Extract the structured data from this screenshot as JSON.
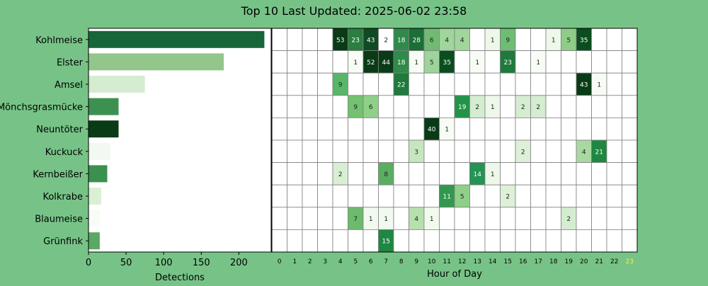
{
  "chart_data": [
    {
      "type": "bar",
      "orientation": "horizontal",
      "title": "Top 10 Last Updated: 2025-06-02 23:58",
      "xlabel": "Detections",
      "categories": [
        "Kohlmeise",
        "Elster",
        "Amsel",
        "Mönchsgrasmücke",
        "Neuntöter",
        "Kuckuck",
        "Kernbeißer",
        "Kolkrabe",
        "Blaumeise",
        "Grünfink"
      ],
      "values": [
        234,
        180,
        75,
        40,
        40,
        29,
        25,
        17,
        15,
        15
      ],
      "colors": [
        "#17663a",
        "#93c68b",
        "#d5ecd1",
        "#3d9150",
        "#0a3b17",
        "#f2f9f0",
        "#3b904f",
        "#daf0d5",
        "#f7fcf5",
        "#5aa865"
      ],
      "xticks": [
        0,
        50,
        100,
        150,
        200
      ],
      "xlim": [
        0,
        243
      ]
    },
    {
      "type": "heatmap",
      "xlabel": "Hour of Day",
      "x": [
        "0",
        "1",
        "2",
        "3",
        "4",
        "5",
        "6",
        "7",
        "8",
        "9",
        "10",
        "11",
        "12",
        "13",
        "14",
        "15",
        "16",
        "17",
        "18",
        "19",
        "20",
        "21",
        "22",
        "23"
      ],
      "highlight_hour": "23",
      "highlight_color": "#eaf24a",
      "rows": [
        "Kohlmeise",
        "Elster",
        "Amsel",
        "Mönchsgrasmücke",
        "Neuntöter",
        "Kuckuck",
        "Kernbeißer",
        "Kolkrabe",
        "Blaumeise",
        "Grünfink"
      ],
      "values": [
        [
          0,
          0,
          0,
          0,
          53,
          23,
          43,
          2,
          18,
          28,
          6,
          4,
          4,
          0,
          1,
          9,
          0,
          0,
          1,
          5,
          35,
          0,
          0,
          0
        ],
        [
          0,
          0,
          0,
          0,
          0,
          1,
          52,
          44,
          18,
          1,
          5,
          35,
          0,
          1,
          0,
          23,
          0,
          1,
          0,
          0,
          0,
          0,
          0,
          0
        ],
        [
          0,
          0,
          0,
          0,
          9,
          0,
          0,
          0,
          22,
          0,
          0,
          0,
          0,
          0,
          0,
          0,
          0,
          0,
          0,
          0,
          43,
          1,
          0,
          0
        ],
        [
          0,
          0,
          0,
          0,
          0,
          9,
          6,
          0,
          0,
          0,
          0,
          0,
          19,
          2,
          1,
          0,
          2,
          2,
          0,
          0,
          0,
          0,
          0,
          0
        ],
        [
          0,
          0,
          0,
          0,
          0,
          0,
          0,
          0,
          0,
          0,
          40,
          1,
          0,
          0,
          0,
          0,
          0,
          0,
          0,
          0,
          0,
          0,
          0,
          0
        ],
        [
          0,
          0,
          0,
          0,
          0,
          0,
          0,
          0,
          0,
          3,
          0,
          0,
          0,
          0,
          0,
          0,
          2,
          0,
          0,
          0,
          4,
          21,
          0,
          0
        ],
        [
          0,
          0,
          0,
          0,
          2,
          0,
          0,
          8,
          0,
          0,
          0,
          0,
          0,
          14,
          1,
          0,
          0,
          0,
          0,
          0,
          0,
          0,
          0,
          0
        ],
        [
          0,
          0,
          0,
          0,
          0,
          0,
          0,
          0,
          0,
          0,
          0,
          11,
          5,
          0,
          0,
          2,
          0,
          0,
          0,
          0,
          0,
          0,
          0,
          0
        ],
        [
          0,
          0,
          0,
          0,
          0,
          7,
          1,
          1,
          0,
          4,
          1,
          0,
          0,
          0,
          0,
          0,
          0,
          0,
          0,
          2,
          0,
          0,
          0,
          0
        ],
        [
          0,
          0,
          0,
          0,
          0,
          0,
          0,
          15,
          0,
          0,
          0,
          0,
          0,
          0,
          0,
          0,
          0,
          0,
          0,
          0,
          0,
          0,
          0,
          0
        ]
      ],
      "cell_colors": [
        [
          null,
          null,
          null,
          null,
          "#0a3b17",
          "#2a7e3f",
          "#0f4a22",
          null,
          "#2e8b4a",
          "#1a6e36",
          "#72ba74",
          "#a0d69b",
          "#a0d69b",
          null,
          "#eef8ea",
          "#6cbe72",
          null,
          null,
          "#eef8ea",
          "#8fcc88",
          "#0a4d1f",
          null,
          null,
          null
        ],
        [
          null,
          null,
          null,
          null,
          null,
          "#f7fcf5",
          "#0a3b17",
          "#0a3b17",
          "#2e8b4a",
          "#f7fcf5",
          "#9ed49b",
          "#0a4d1f",
          null,
          "#f7fcf5",
          null,
          "#1f7a3b",
          null,
          "#f7fcf5",
          null,
          null,
          null,
          null,
          null,
          null
        ],
        [
          null,
          null,
          null,
          null,
          "#58b668",
          null,
          null,
          null,
          "#1f7a3b",
          null,
          null,
          null,
          null,
          null,
          null,
          null,
          null,
          null,
          null,
          null,
          "#0a3b17",
          "#f7fcf5",
          null,
          null
        ],
        [
          null,
          null,
          null,
          null,
          null,
          "#72c270",
          "#8ed087",
          null,
          null,
          null,
          null,
          null,
          "#229449",
          "#d4ecd0",
          "#eef8ea",
          null,
          "#d4ecd0",
          "#d4ecd0",
          null,
          null,
          null,
          null,
          null,
          null
        ],
        [
          null,
          null,
          null,
          null,
          null,
          null,
          null,
          null,
          null,
          null,
          "#0a3b17",
          "#f7fcf5",
          null,
          null,
          null,
          null,
          null,
          null,
          null,
          null,
          null,
          null,
          null,
          null
        ],
        [
          null,
          null,
          null,
          null,
          null,
          null,
          null,
          null,
          null,
          "#c6e6bf",
          null,
          null,
          null,
          null,
          null,
          null,
          "#ddf0d8",
          null,
          null,
          null,
          "#a7d9a0",
          "#1f8742",
          null,
          null
        ],
        [
          null,
          null,
          null,
          null,
          "#d9efd4",
          null,
          null,
          "#5aae62",
          null,
          null,
          null,
          null,
          null,
          "#249454",
          "#eef8ea",
          null,
          null,
          null,
          null,
          null,
          null,
          null,
          null,
          null
        ],
        [
          null,
          null,
          null,
          null,
          null,
          null,
          null,
          null,
          null,
          null,
          null,
          "#32984e",
          "#8ed087",
          null,
          null,
          "#ddf0d8",
          null,
          null,
          null,
          null,
          null,
          null,
          null,
          null
        ],
        [
          null,
          null,
          null,
          null,
          null,
          "#6cbb6c",
          "#f2faef",
          "#f2faef",
          null,
          "#b6e0ad",
          "#f2faef",
          null,
          null,
          null,
          null,
          null,
          null,
          null,
          null,
          "#d4ecd0",
          null,
          null,
          null,
          null
        ],
        [
          null,
          null,
          null,
          null,
          null,
          null,
          null,
          "#1f8742",
          null,
          null,
          null,
          null,
          null,
          null,
          null,
          null,
          null,
          null,
          null,
          null,
          null,
          null,
          null,
          null
        ]
      ]
    }
  ]
}
